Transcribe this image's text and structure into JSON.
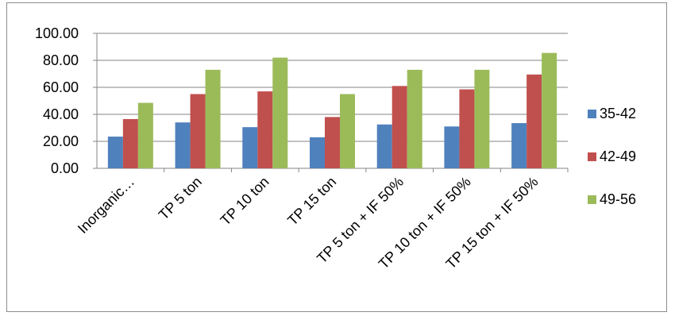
{
  "chart_data": {
    "type": "bar",
    "title": "",
    "xlabel": "",
    "ylabel": "",
    "ylim": [
      0,
      100
    ],
    "y_ticks": [
      "0.00",
      "20.00",
      "40.00",
      "60.00",
      "80.00",
      "100.00"
    ],
    "y_tick_values": [
      0,
      20,
      40,
      60,
      80,
      100
    ],
    "grid": true,
    "legend_position": "right",
    "categories": [
      "Inorganic…",
      "TP 5 ton",
      "TP 10 ton",
      "TP 15 ton",
      "TP 5 ton + IF  50%",
      "TP 10 ton + IF 50%",
      "TP 15 ton + IF 50%"
    ],
    "series": [
      {
        "name": "35-42",
        "color": "#4f81bd",
        "values": [
          23.5,
          34.0,
          30.5,
          23.0,
          32.5,
          31.0,
          33.5
        ]
      },
      {
        "name": "42-49",
        "color": "#c0504d",
        "values": [
          36.5,
          55.0,
          57.0,
          38.0,
          61.0,
          58.5,
          69.5
        ]
      },
      {
        "name": "49-56",
        "color": "#9bbb59",
        "values": [
          48.5,
          73.0,
          82.0,
          55.0,
          73.0,
          73.0,
          85.5
        ]
      }
    ]
  }
}
